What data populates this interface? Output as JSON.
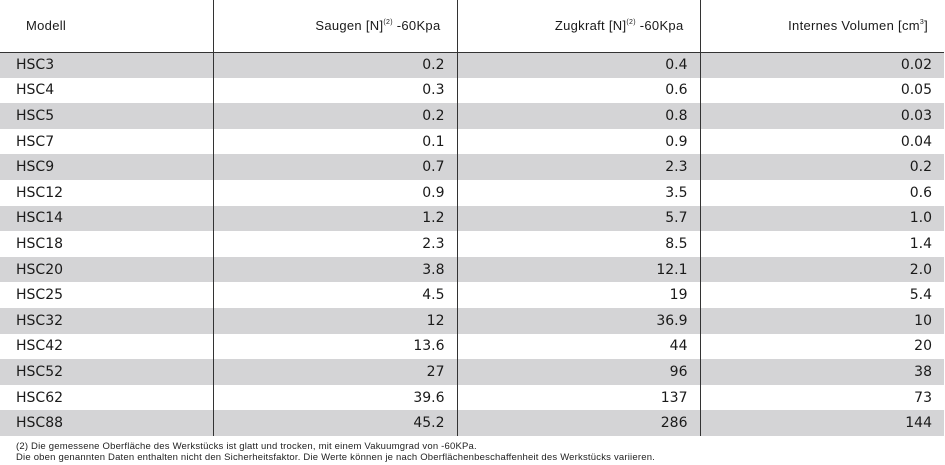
{
  "table": {
    "headers": [
      {
        "text": "Modell",
        "sup": ""
      },
      {
        "text": "Saugen [N]",
        "sup": "(2)",
        "suffix": " -60Kpa"
      },
      {
        "text": "Zugkraft [N]",
        "sup": "(2)",
        "suffix": " -60Kpa"
      },
      {
        "text": "Internes Volumen [cm",
        "sup": "3",
        "suffix": "]"
      }
    ],
    "rows": [
      [
        "HSC3",
        "0.2",
        "0.4",
        "0.02"
      ],
      [
        "HSC4",
        "0.3",
        "0.6",
        "0.05"
      ],
      [
        "HSC5",
        "0.2",
        "0.8",
        "0.03"
      ],
      [
        "HSC7",
        "0.1",
        "0.9",
        "0.04"
      ],
      [
        "HSC9",
        "0.7",
        "2.3",
        "0.2"
      ],
      [
        "HSC12",
        "0.9",
        "3.5",
        "0.6"
      ],
      [
        "HSC14",
        "1.2",
        "5.7",
        "1.0"
      ],
      [
        "HSC18",
        "2.3",
        "8.5",
        "1.4"
      ],
      [
        "HSC20",
        "3.8",
        "12.1",
        "2.0"
      ],
      [
        "HSC25",
        "4.5",
        "19",
        "5.4"
      ],
      [
        "HSC32",
        "12",
        "36.9",
        "10"
      ],
      [
        "HSC42",
        "13.6",
        "44",
        "20"
      ],
      [
        "HSC52",
        "27",
        "96",
        "38"
      ],
      [
        "HSC62",
        "39.6",
        "137",
        "73"
      ],
      [
        "HSC88",
        "45.2",
        "286",
        "144"
      ]
    ],
    "shade_color": "#d4d4d6"
  },
  "notes": [
    "(2) Die gemessene Oberfläche des Werkstücks ist glatt und trocken, mit einem Vakuumgrad von -60KPa.",
    "Die oben genannten Daten enthalten nicht den Sicherheitsfaktor. Die Werte können je nach Oberflächenbeschaffenheit des Werkstücks variieren."
  ]
}
